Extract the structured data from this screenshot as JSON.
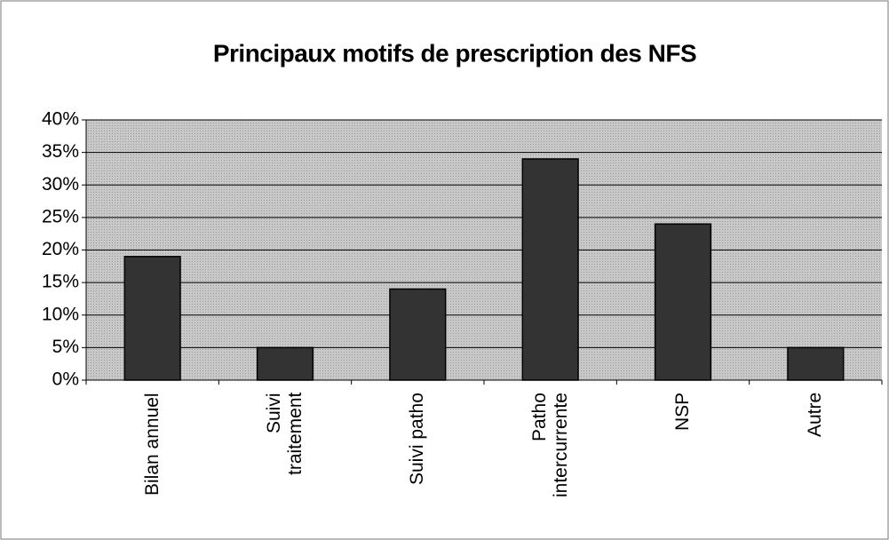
{
  "chart_data": {
    "type": "bar",
    "title": "Principaux motifs de prescription des NFS",
    "categories": [
      "Bilan annuel",
      "Suivi\ntraitement",
      "Suivi patho",
      "Patho\nintercurrente",
      "NSP",
      "Autre"
    ],
    "values": [
      19,
      5,
      14,
      34,
      24,
      5
    ],
    "color": "#333333",
    "ylim": [
      0,
      40
    ],
    "yticks": [
      {
        "value": 0,
        "label": "0%"
      },
      {
        "value": 5,
        "label": "5%"
      },
      {
        "value": 10,
        "label": "10%"
      },
      {
        "value": 15,
        "label": "15%"
      },
      {
        "value": 20,
        "label": "20%"
      },
      {
        "value": 25,
        "label": "25%"
      },
      {
        "value": 30,
        "label": "30%"
      },
      {
        "value": 35,
        "label": "35%"
      },
      {
        "value": 40,
        "label": "40%"
      }
    ],
    "grid": true
  }
}
